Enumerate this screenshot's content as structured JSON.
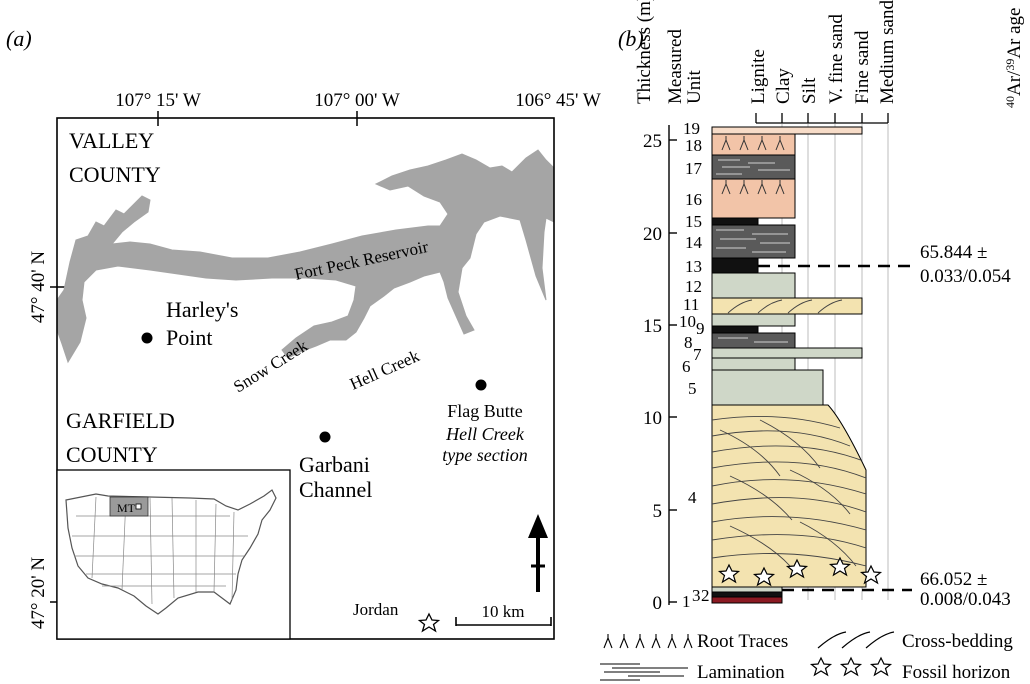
{
  "panel_a": {
    "label": "(a)",
    "longitudes": [
      "107° 15' W",
      "107° 00' W",
      "106° 45' W"
    ],
    "latitudes": [
      "47° 40' N",
      "47° 20' N"
    ],
    "counties": {
      "valley_line1": "VALLEY",
      "valley_line2": "COUNTY",
      "garfield_line1": "GARFIELD",
      "garfield_line2": "COUNTY"
    },
    "water": {
      "reservoir": "Fort Peck Reservoir",
      "snow_creek": "Snow Creek",
      "hell_creek": "Hell Creek"
    },
    "sites": {
      "harleys_line1": "Harley's",
      "harleys_line2": "Point",
      "garbani_line1": "Garbani",
      "garbani_line2": "Channel",
      "flag_line1": "Flag Butte",
      "flag_line2": "Hell Creek",
      "flag_line3": "type section",
      "jordan": "Jordan"
    },
    "inset_label": "MT",
    "scale_label": "10 km",
    "colors": {
      "water": "#a5a5a5",
      "montana": "#9a9a9a"
    }
  },
  "panel_b": {
    "label": "(b)",
    "headers": {
      "thickness": "Thickness (m)",
      "unit_line1": "Measured",
      "unit_line2": "Unit",
      "grain": [
        "Lignite",
        "Clay",
        "Silt",
        "V. fine sand",
        "Fine sand",
        "Medium sand"
      ],
      "age": "40Ar/39Ar age"
    },
    "axis_ticks": [
      "0",
      "5",
      "10",
      "15",
      "20",
      "25"
    ],
    "unit_numbers": [
      "19",
      "18",
      "17",
      "16",
      "15",
      "14",
      "13",
      "12",
      "11",
      "10",
      "9",
      "8",
      "7",
      "6",
      "5",
      "4",
      "3",
      "2",
      "1"
    ],
    "ages": {
      "upper_line1": "65.844 ±",
      "upper_line2": "0.033/0.054",
      "lower_line1": "66.052 ±",
      "lower_line2": "0.008/0.043"
    },
    "legend": {
      "root_traces": "Root Traces",
      "cross_bedding": "Cross-bedding",
      "lamination": "Lamination",
      "fossil_horizon": "Fossil horizon"
    },
    "colors": {
      "paleosol": "#f2c4a8",
      "mudstone": "#cfd7c8",
      "sand": "#f3e3b0",
      "lignite": "#111111",
      "laminated": "#5a5a5a",
      "basal_red": "#8b1a22"
    }
  }
}
